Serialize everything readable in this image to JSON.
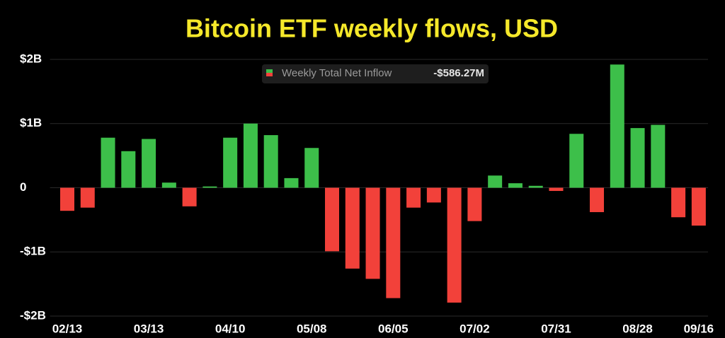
{
  "chart_data": {
    "type": "bar",
    "title": "Bitcoin ETF weekly flows, USD",
    "legend_label": "Weekly Total Net Inflow",
    "legend_value": "-$586.27M",
    "categories": [
      "02/13",
      null,
      null,
      null,
      "03/13",
      null,
      null,
      null,
      "04/10",
      null,
      null,
      null,
      "05/08",
      null,
      null,
      null,
      "06/05",
      null,
      null,
      null,
      "07/02",
      null,
      null,
      null,
      "07/31",
      null,
      null,
      null,
      "08/28",
      null,
      null,
      "09/16"
    ],
    "values": [
      -0.36,
      -0.31,
      0.78,
      0.57,
      0.76,
      0.08,
      -0.29,
      0.02,
      0.78,
      1.0,
      0.82,
      0.15,
      0.62,
      -0.99,
      -1.26,
      -1.42,
      -1.72,
      -0.31,
      -0.23,
      -1.79,
      -0.52,
      0.19,
      0.07,
      0.03,
      -0.05,
      0.84,
      -0.38,
      1.92,
      0.93,
      0.98,
      -0.46,
      -0.59
    ],
    "positive_color": "#3dbf4a",
    "negative_color": "#f2413a",
    "ylim": [
      -2,
      2
    ],
    "yticks": [
      {
        "value": -2,
        "label": "-$2B"
      },
      {
        "value": -1,
        "label": "-$1B"
      },
      0,
      {
        "value": 1,
        "label": "$1B"
      },
      {
        "value": 2,
        "label": "$2B"
      }
    ],
    "grid": true
  }
}
